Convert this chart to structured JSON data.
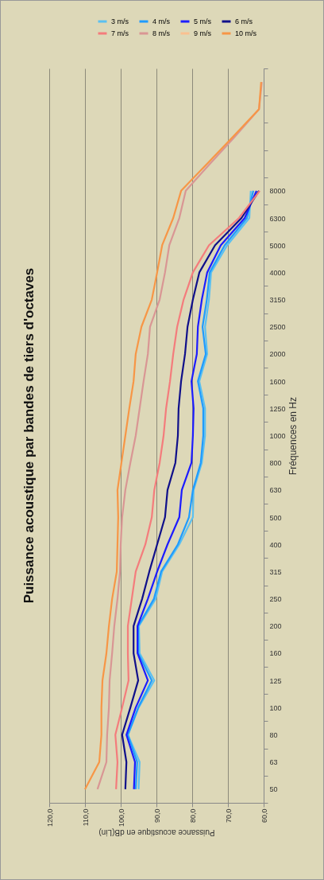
{
  "chart_data": {
    "type": "line",
    "orientation": "horizontal",
    "title": "Puissance acoustique par bandes de tiers d'octaves",
    "ylabel": "Fréquences en Hz",
    "xlabel": "Puissance acoustique en dB(Lin)",
    "categories": [
      null,
      null,
      null,
      null,
      "8000",
      "6300",
      "5000",
      "4000",
      "3150",
      "2500",
      "2000",
      "1600",
      "1250",
      "1000",
      "800",
      "630",
      "500",
      "400",
      "315",
      "250",
      "200",
      "160",
      "125",
      "100",
      "80",
      "63",
      "50"
    ],
    "xlim": [
      120,
      60
    ],
    "xticks": [
      {
        "value": 120,
        "label": "120,0"
      },
      {
        "value": 110,
        "label": "110,0"
      },
      {
        "value": 100,
        "label": "100,0"
      },
      {
        "value": 90,
        "label": "90,0"
      },
      {
        "value": 80,
        "label": "80,0"
      },
      {
        "value": 70,
        "label": "70,0"
      },
      {
        "value": 60,
        "label": "60,0"
      }
    ],
    "grid": "x",
    "legend": "top right",
    "series": [
      {
        "name": "3 m/s",
        "color": "#5bc0f0",
        "values": [
          null,
          null,
          null,
          null,
          63.6,
          64,
          70.2,
          74.7,
          75.3,
          76.4,
          75.8,
          78,
          76.4,
          76.4,
          77.3,
          79.6,
          79.8,
          83.6,
          88.4,
          90.2,
          94.9,
          94.7,
          90.6,
          95,
          98,
          94.7,
          95
        ]
      },
      {
        "name": "4 m/s",
        "color": "#1f9bff",
        "values": [
          null,
          null,
          null,
          null,
          62.9,
          64.7,
          70.9,
          75.1,
          75.9,
          77.1,
          76.2,
          78.4,
          76.9,
          76.9,
          77.6,
          79.8,
          80.9,
          84,
          88.7,
          90.7,
          95.1,
          95.1,
          91.3,
          95.1,
          98,
          95.4,
          95.8
        ]
      },
      {
        "name": "5 m/s",
        "color": "#1c1cff",
        "values": [
          null,
          null,
          null,
          null,
          62,
          65.3,
          72,
          75.8,
          77.3,
          78.4,
          78.7,
          80.2,
          79.6,
          79.8,
          80.2,
          82.9,
          83.6,
          86.9,
          89.8,
          92.4,
          95.3,
          95.3,
          92.4,
          95.8,
          98.4,
          96,
          96.3
        ]
      },
      {
        "name": "6 m/s",
        "color": "#10108a",
        "values": [
          null,
          null,
          null,
          null,
          61.3,
          66.2,
          73.6,
          78,
          79.8,
          81.3,
          82,
          83.1,
          83.8,
          84,
          84.7,
          86.9,
          87.6,
          89.8,
          92,
          94,
          96.4,
          96.4,
          95.1,
          97.3,
          99.6,
          98.4,
          98.7
        ]
      },
      {
        "name": "7 m/s",
        "color": "#f47c7c",
        "values": [
          null,
          null,
          null,
          null,
          61.1,
          66.9,
          75.3,
          79.8,
          82.4,
          84.2,
          85.3,
          86.2,
          87.3,
          88,
          89.1,
          90.6,
          91.3,
          93.1,
          95.8,
          96.9,
          98,
          98,
          97.8,
          99.6,
          101.5,
          100.9,
          101.3
        ]
      },
      {
        "name": "8 m/s",
        "color": "#d99694",
        "values": [
          60.5,
          61.3,
          68,
          75,
          81.8,
          83.6,
          86.4,
          87.6,
          89.1,
          91.8,
          92.4,
          93.6,
          94.7,
          95.8,
          97.3,
          98.7,
          99.6,
          100,
          100.2,
          100.9,
          101.8,
          102.4,
          103.1,
          103.3,
          103.8,
          104,
          106.5
        ]
      },
      {
        "name": "9 m/s",
        "color": "#fac090",
        "values": [
          null,
          null,
          null,
          null,
          null,
          null,
          null,
          null,
          null,
          null,
          null,
          null,
          null,
          null,
          null,
          null,
          null,
          null,
          null,
          null,
          null,
          null,
          null,
          null,
          null,
          null,
          null
        ]
      },
      {
        "name": "10 m/s",
        "color": "#f79646",
        "values": [
          60.7,
          61.3,
          68.5,
          75.8,
          83.1,
          85.3,
          88.4,
          89.8,
          91.3,
          94.2,
          95.8,
          96.4,
          97.6,
          98.7,
          99.8,
          100.9,
          100.7,
          100.9,
          101.1,
          102.4,
          103.3,
          104,
          105.1,
          105.4,
          105.4,
          106,
          110
        ]
      }
    ]
  }
}
